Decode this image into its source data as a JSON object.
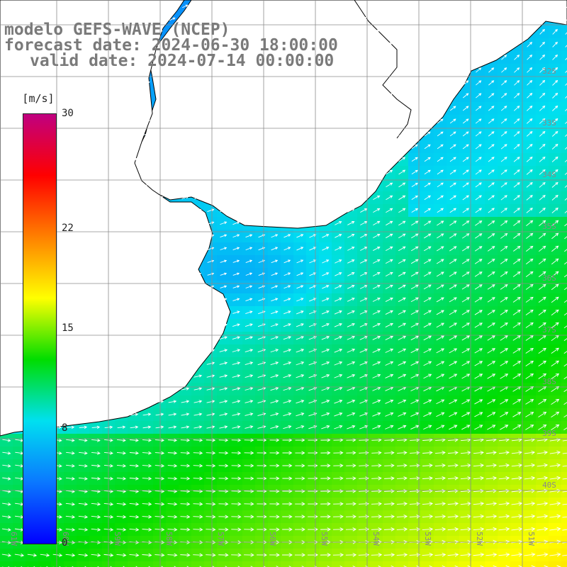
{
  "header": {
    "line1": "modelo GEFS-WAVE (NCEP)",
    "line2": "forecast date: 2024-06-30 18:00:00",
    "line3": "valid date: 2024-07-14 00:00:00"
  },
  "legend": {
    "unit": "[m/s]",
    "ticks": [
      {
        "label": "30",
        "value": 30
      },
      {
        "label": "22",
        "value": 22
      },
      {
        "label": "15",
        "value": 15
      },
      {
        "label": "8",
        "value": 8
      },
      {
        "label": "0",
        "value": 0
      }
    ],
    "min": 0,
    "max": 30
  },
  "grid": {
    "lat_labels": [
      "32S",
      "33S",
      "34S",
      "35S",
      "36S",
      "37S",
      "38S",
      "39S",
      "40S"
    ],
    "lon_labels": [
      "61W",
      "60W",
      "59W",
      "58W",
      "57W",
      "56W",
      "55W",
      "54W",
      "53W",
      "52W",
      "51W"
    ]
  },
  "colors": {
    "land": "#ffffff",
    "coast": "#000000",
    "grid": "#8c8c8c",
    "arrows": "#ffffff",
    "title": "#7a7a7a",
    "colormap": [
      "#0000ff",
      "#0a78ff",
      "#00e0f0",
      "#00dd00",
      "#ffff00",
      "#ff8000",
      "#ff0000",
      "#c00080"
    ]
  }
}
